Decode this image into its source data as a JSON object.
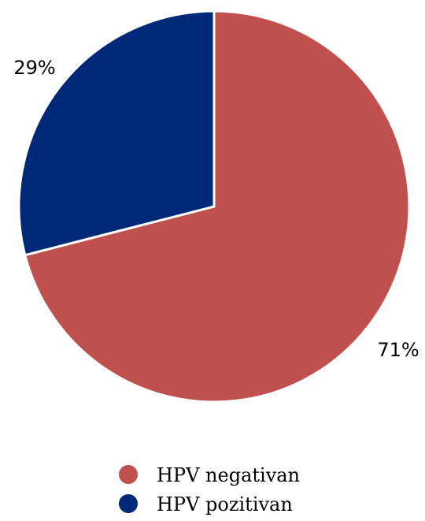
{
  "chart_data": {
    "type": "pie",
    "title": "",
    "categories": [
      "HPV negativan",
      "HPV pozitivan"
    ],
    "values": [
      71,
      29
    ],
    "labels": [
      "71%",
      "29%"
    ],
    "colors": [
      "#c0504d",
      "#002878"
    ],
    "legend": {
      "position": "bottom",
      "entries": [
        "HPV negativan",
        "HPV pozitivan"
      ]
    }
  }
}
